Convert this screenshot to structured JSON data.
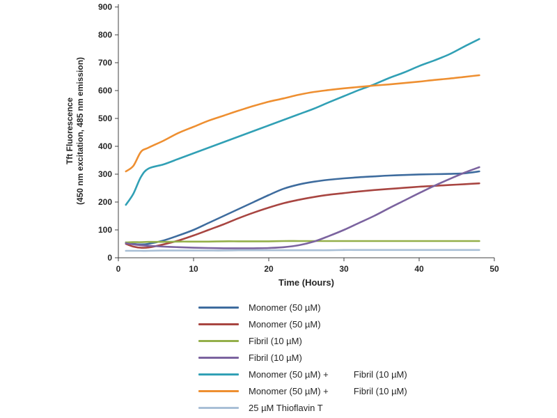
{
  "chart_data": {
    "type": "line",
    "title": "",
    "xlabel": "Time (Hours)",
    "ylabel_line1": "Tft Fluorescence",
    "ylabel_line2": "(450 nm excitation, 485 nm emission)",
    "xlim": [
      0,
      50
    ],
    "ylim": [
      0,
      900
    ],
    "xticks": [
      0,
      10,
      20,
      30,
      40,
      50
    ],
    "yticks": [
      0,
      100,
      200,
      300,
      400,
      500,
      600,
      700,
      800,
      900
    ],
    "grid": false,
    "legend_position": "bottom",
    "x": [
      1,
      2,
      3,
      4,
      6,
      8,
      10,
      12,
      14,
      16,
      18,
      20,
      22,
      24,
      26,
      28,
      30,
      32,
      34,
      36,
      38,
      40,
      42,
      44,
      46,
      48
    ],
    "series": [
      {
        "name": "Monomer (50 µM)",
        "color": "#3E6C9E",
        "y": [
          55,
          50,
          48,
          50,
          62,
          80,
          100,
          125,
          150,
          175,
          200,
          225,
          248,
          263,
          273,
          280,
          285,
          289,
          292,
          295,
          297,
          299,
          300,
          301,
          303,
          310
        ]
      },
      {
        "name": "Monomer (50 µM)",
        "color": "#A84541",
        "y": [
          50,
          40,
          36,
          37,
          48,
          62,
          80,
          100,
          120,
          142,
          162,
          180,
          196,
          208,
          218,
          226,
          232,
          238,
          243,
          247,
          251,
          255,
          258,
          261,
          264,
          267
        ]
      },
      {
        "name": "Fibril (10 µM)",
        "color": "#94AF4A",
        "y": [
          55,
          56,
          56,
          57,
          57,
          58,
          58,
          58,
          59,
          59,
          59,
          59,
          60,
          60,
          60,
          60,
          60,
          60,
          60,
          60,
          60,
          60,
          60,
          60,
          60,
          60
        ]
      },
      {
        "name": "Fibril (10 µM)",
        "color": "#7B639F",
        "y": [
          52,
          48,
          45,
          43,
          40,
          38,
          36,
          35,
          34,
          34,
          34,
          35,
          38,
          45,
          58,
          78,
          100,
          125,
          150,
          178,
          205,
          232,
          258,
          282,
          305,
          325
        ]
      },
      {
        "name": "Monomer (50 µM) + Fibril (10 µM)",
        "color": "#31A0B5",
        "y": [
          190,
          230,
          290,
          320,
          335,
          355,
          375,
          395,
          415,
          435,
          455,
          475,
          495,
          515,
          535,
          558,
          580,
          602,
          622,
          645,
          665,
          688,
          708,
          730,
          758,
          785
        ]
      },
      {
        "name": "Monomer (50 µM) + Fibril (10 µM)",
        "color": "#EE8F31",
        "y": [
          310,
          330,
          380,
          395,
          420,
          448,
          470,
          492,
          510,
          528,
          545,
          560,
          572,
          585,
          595,
          602,
          608,
          613,
          618,
          622,
          627,
          632,
          638,
          643,
          649,
          655
        ]
      },
      {
        "name": "25 µM Thioflavin T",
        "color": "#A8BFD6",
        "y": [
          25,
          25,
          25,
          25,
          26,
          26,
          26,
          26,
          26,
          27,
          27,
          27,
          27,
          27,
          27,
          27,
          28,
          28,
          28,
          28,
          28,
          28,
          28,
          28,
          28,
          28
        ]
      }
    ]
  },
  "legend": {
    "items": [
      {
        "label": "Monomer (50 µM)",
        "color": "#3E6C9E"
      },
      {
        "label": "Monomer (50 µM)",
        "color": "#A84541"
      },
      {
        "label": "Fibril (10 µM)",
        "color": "#94AF4A"
      },
      {
        "label": "Fibril (10 µM)",
        "color": "#7B639F"
      },
      {
        "label": "Monomer (50 µM) +          Fibril (10 µM)",
        "color": "#31A0B5"
      },
      {
        "label": "Monomer (50 µM) +          Fibril (10 µM)",
        "color": "#EE8F31"
      },
      {
        "label": "25 µM Thioflavin T",
        "color": "#A8BFD6"
      }
    ]
  }
}
